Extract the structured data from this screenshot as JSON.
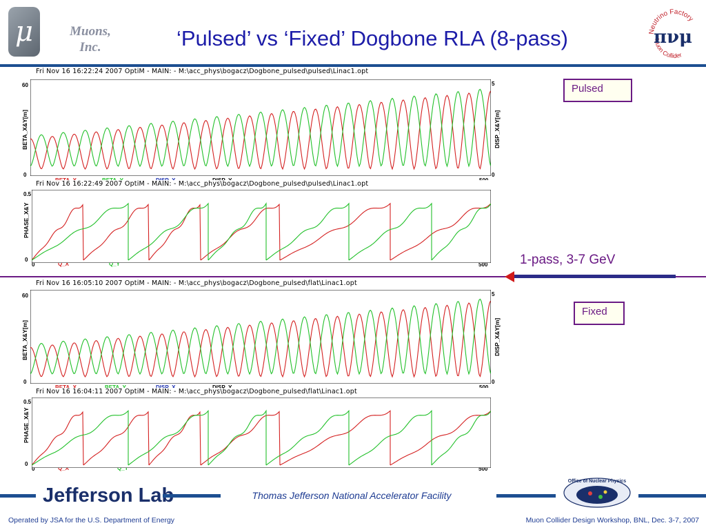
{
  "header": {
    "logo_glyph": "μ",
    "org_name": "Muons, Inc.",
    "title": "‘Pulsed’ vs ‘Fixed’ Dogbone RLA (8-pass)",
    "nf_logo_text_top": "Neutrino Factory",
    "nf_logo_text_bottom": "Muon Collider",
    "nf_logo_glyphs": "πνμ"
  },
  "labels": {
    "pulsed": "Pulsed",
    "fixed": "Fixed",
    "pass": "1-pass, 3-7 GeV"
  },
  "plots": {
    "pulsed_beta": {
      "title": "Fri  Nov 16 16:22:24  2007    OptiM - MAIN: - M:\\acc_phys\\bogacz\\Dogbone_pulsed\\pulsed\\Linac1.opt",
      "ylabel_left": "BETA_X&Y[m]",
      "ylabel_right": "DISP_X&Y[m]",
      "ytick_top_left": "60",
      "ytick_bot_left": "0",
      "ytick_top_right": "5",
      "ytick_bot_right": "0",
      "xtick_right": "500",
      "legend": [
        "BETA_X",
        "BETA_Y",
        "DISP_X",
        "DISP_Y"
      ]
    },
    "pulsed_phase": {
      "title": "Fri Nov 16 16:22:49 2007    OptiM - MAIN: - M:\\acc_phys\\bogacz\\Dogbone_pulsed\\pulsed\\Linac1.opt",
      "ylabel_left": "PHASE_X&Y",
      "ytick_top_left": "0.5",
      "ytick_bot_left": "0",
      "xtick_left": "0",
      "xtick_right": "500",
      "legend": [
        "Q_X",
        "Q_Y"
      ]
    },
    "fixed_beta": {
      "title": "Fri Nov 16 16:05:10 2007    OptiM - MAIN: - M:\\acc_phys\\bogacz\\Dogbone_pulsed\\flat\\Linac1.opt",
      "ylabel_left": "BETA_X&Y[m]",
      "ylabel_right": "DISP_X&Y[m]",
      "ytick_top_left": "60",
      "ytick_bot_left": "0",
      "ytick_top_right": "5",
      "ytick_bot_right": "0",
      "xtick_right": "500",
      "legend": [
        "BETA_X",
        "BETA_Y",
        "DISP_X",
        "DISP_Y"
      ]
    },
    "fixed_phase": {
      "title": "Fri Nov 16 16:04:11 2007    OptiM - MAIN: - M:\\acc_phys\\bogacz\\Dogbone_pulsed\\flat\\Linac1.opt",
      "ylabel_left": "PHASE_X&Y",
      "ytick_top_left": "0.5",
      "ytick_bot_left": "0",
      "xtick_left": "0",
      "xtick_right": "500",
      "legend": [
        "Q_X",
        "Q_Y"
      ]
    }
  },
  "footer": {
    "jlab": "Jefferson Lab",
    "facility": "Thomas Jefferson National Accelerator Facility",
    "onp_logo_text": "Office of Nuclear Physics",
    "left": "Operated by JSA for the U.S. Department of Energy",
    "right": "Muon Collider Design Workshop, BNL, Dec. 3-7, 2007"
  },
  "colors": {
    "red": "#d42020",
    "green": "#22c02a",
    "purple": "#6a1a84",
    "navy": "#1d4f91"
  }
}
